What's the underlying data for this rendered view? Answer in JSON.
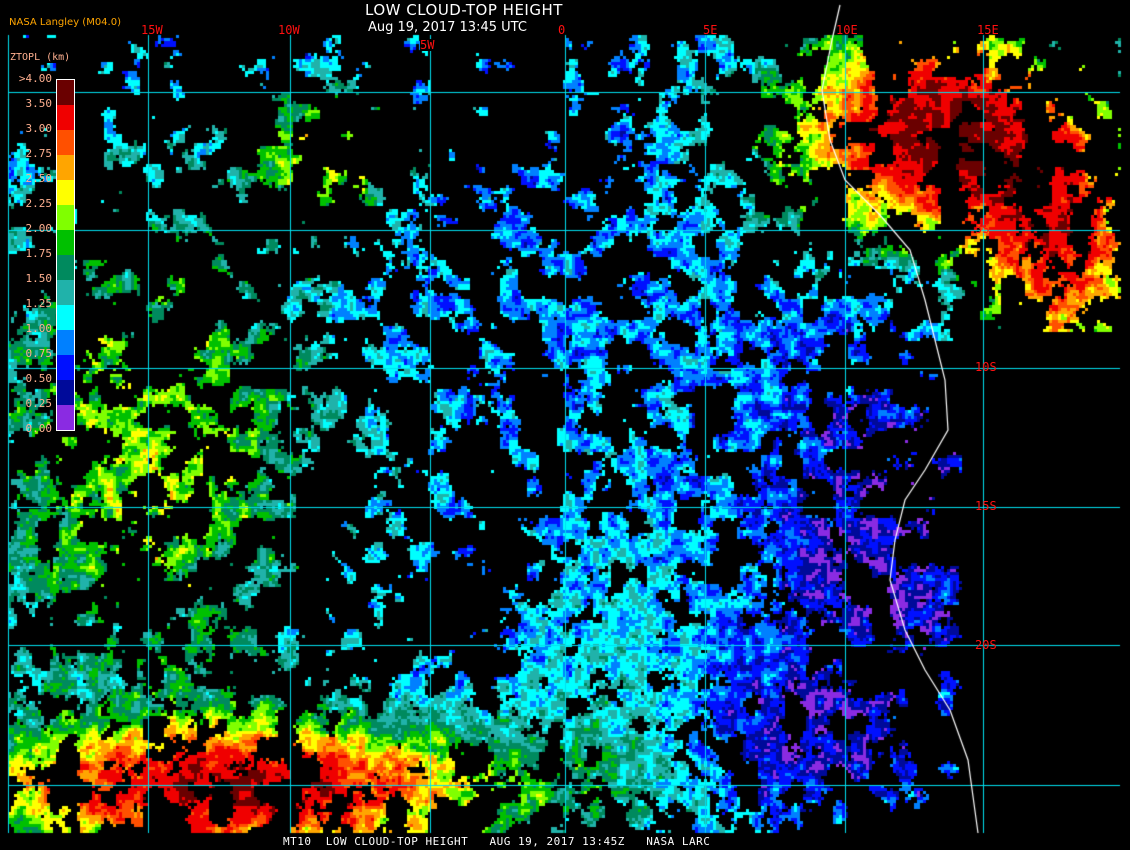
{
  "header": {
    "title": "LOW CLOUD-TOP HEIGHT",
    "subtitle": "Aug 19, 2017 13:45 UTC",
    "brand": "NASA Langley (M04.0)"
  },
  "footer": {
    "caption": "MT10  LOW CLOUD-TOP HEIGHT   AUG 19, 2017 13:45Z   NASA LARC"
  },
  "map": {
    "longitude_labels": [
      "15W",
      "10W",
      "5W",
      "0",
      "5E",
      "10E",
      "15E"
    ],
    "latitude_labels": [
      "5S",
      "10S",
      "15S",
      "20S"
    ],
    "grid_color": "#00e0f0",
    "coastline_color": "#ffffff",
    "label_color": "#ff1010"
  },
  "legend": {
    "title": "ZTOPL (km)",
    "labels": [
      ">4.00",
      "3.50",
      "3.00",
      "2.75",
      "2.50",
      "2.25",
      "2.00",
      "1.75",
      "1.50",
      "1.25",
      "1.00",
      "0.75",
      "0.50",
      "0.25",
      "0.00"
    ],
    "colors": [
      "#6a0000",
      "#f00000",
      "#ff5000",
      "#ffa500",
      "#ffff00",
      "#80ff00",
      "#00c000",
      "#008a5e",
      "#20b2aa",
      "#00ffff",
      "#0080ff",
      "#0010ff",
      "#000a9a",
      "#8a2be2"
    ]
  }
}
